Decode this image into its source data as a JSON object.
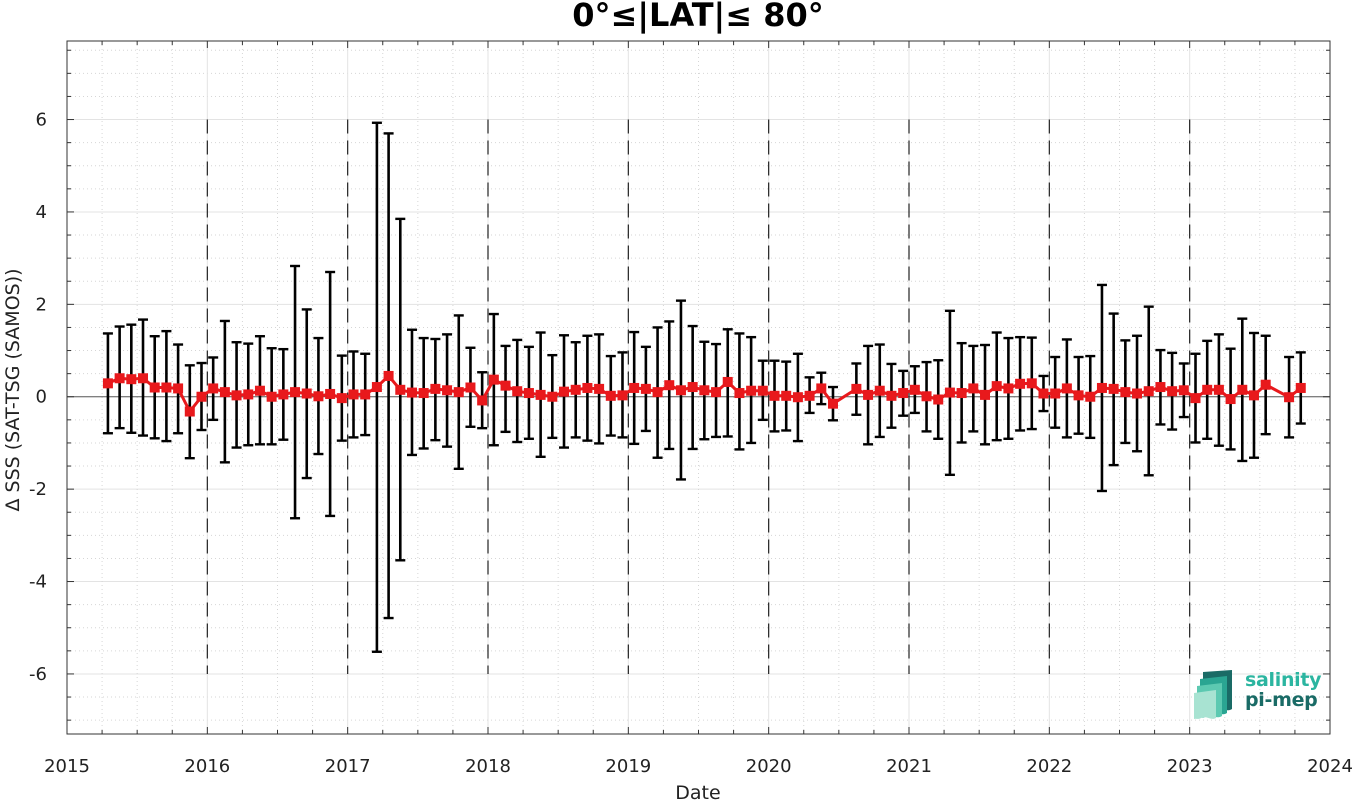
{
  "chart_data": {
    "type": "line",
    "title": "0°≤|LAT|≤ 80°",
    "xlabel": "Date",
    "ylabel": "Δ SSS (SAT-TSG (SAMOS))",
    "xlim": [
      "2015-01-01",
      "2024-01-01"
    ],
    "ylim": [
      -7.3,
      7.7
    ],
    "x_ticks": [
      "2015",
      "2016",
      "2017",
      "2018",
      "2019",
      "2020",
      "2021",
      "2022",
      "2023",
      "2024"
    ],
    "y_ticks": [
      "6",
      "4",
      "2",
      "0",
      "-2",
      "-4",
      "-6"
    ],
    "grid": true,
    "vertical_dashed_lines": [
      "2016-01-01",
      "2017-01-01",
      "2018-01-01",
      "2019-01-01",
      "2020-01-01",
      "2021-01-01",
      "2022-01-01",
      "2023-01-01"
    ],
    "series": [
      {
        "color": "#e8191c",
        "marker": "square",
        "error_bar_color": "#000000",
        "points": [
          {
            "x": "2015-04",
            "y": 0.29,
            "low": -0.79,
            "high": 1.37
          },
          {
            "x": "2015-05",
            "y": 0.4,
            "low": -0.68,
            "high": 1.52
          },
          {
            "x": "2015-06",
            "y": 0.38,
            "low": -0.78,
            "high": 1.56
          },
          {
            "x": "2015-07",
            "y": 0.4,
            "low": -0.84,
            "high": 1.67
          },
          {
            "x": "2015-08",
            "y": 0.2,
            "low": -0.9,
            "high": 1.31
          },
          {
            "x": "2015-09",
            "y": 0.2,
            "low": -0.96,
            "high": 1.42
          },
          {
            "x": "2015-10",
            "y": 0.18,
            "low": -0.79,
            "high": 1.13
          },
          {
            "x": "2015-11",
            "y": -0.32,
            "low": -1.33,
            "high": 0.68
          },
          {
            "x": "2015-12",
            "y": 0.0,
            "low": -0.72,
            "high": 0.73
          },
          {
            "x": "2016-01",
            "y": 0.18,
            "low": -0.5,
            "high": 0.85
          },
          {
            "x": "2016-02",
            "y": 0.1,
            "low": -1.42,
            "high": 1.64
          },
          {
            "x": "2016-03",
            "y": 0.03,
            "low": -1.1,
            "high": 1.18
          },
          {
            "x": "2016-04",
            "y": 0.05,
            "low": -1.05,
            "high": 1.15
          },
          {
            "x": "2016-05",
            "y": 0.13,
            "low": -1.03,
            "high": 1.31
          },
          {
            "x": "2016-06",
            "y": 0.0,
            "low": -1.03,
            "high": 1.05
          },
          {
            "x": "2016-07",
            "y": 0.05,
            "low": -0.93,
            "high": 1.03
          },
          {
            "x": "2016-08",
            "y": 0.1,
            "low": -2.63,
            "high": 2.83
          },
          {
            "x": "2016-09",
            "y": 0.07,
            "low": -1.76,
            "high": 1.89
          },
          {
            "x": "2016-10",
            "y": 0.01,
            "low": -1.24,
            "high": 1.27
          },
          {
            "x": "2016-11",
            "y": 0.06,
            "low": -2.58,
            "high": 2.7
          },
          {
            "x": "2016-12",
            "y": -0.03,
            "low": -0.95,
            "high": 0.89
          },
          {
            "x": "2017-01",
            "y": 0.05,
            "low": -0.88,
            "high": 0.98
          },
          {
            "x": "2017-02",
            "y": 0.05,
            "low": -0.83,
            "high": 0.93
          },
          {
            "x": "2017-03",
            "y": 0.21,
            "low": -5.52,
            "high": 5.93
          },
          {
            "x": "2017-04",
            "y": 0.45,
            "low": -4.79,
            "high": 5.7
          },
          {
            "x": "2017-05",
            "y": 0.15,
            "low": -3.54,
            "high": 3.85
          },
          {
            "x": "2017-06",
            "y": 0.09,
            "low": -1.26,
            "high": 1.45
          },
          {
            "x": "2017-07",
            "y": 0.08,
            "low": -1.12,
            "high": 1.27
          },
          {
            "x": "2017-08",
            "y": 0.17,
            "low": -0.94,
            "high": 1.25
          },
          {
            "x": "2017-09",
            "y": 0.14,
            "low": -1.08,
            "high": 1.35
          },
          {
            "x": "2017-10",
            "y": 0.1,
            "low": -1.56,
            "high": 1.76
          },
          {
            "x": "2017-11",
            "y": 0.2,
            "low": -0.65,
            "high": 1.06
          },
          {
            "x": "2017-12",
            "y": -0.08,
            "low": -0.68,
            "high": 0.53
          },
          {
            "x": "2018-01",
            "y": 0.37,
            "low": -1.05,
            "high": 1.79
          },
          {
            "x": "2018-02",
            "y": 0.24,
            "low": -0.76,
            "high": 1.1
          },
          {
            "x": "2018-03",
            "y": 0.12,
            "low": -0.98,
            "high": 1.23
          },
          {
            "x": "2018-04",
            "y": 0.08,
            "low": -0.91,
            "high": 1.08
          },
          {
            "x": "2018-05",
            "y": 0.04,
            "low": -1.3,
            "high": 1.39
          },
          {
            "x": "2018-06",
            "y": 0.0,
            "low": -0.89,
            "high": 0.9
          },
          {
            "x": "2018-07",
            "y": 0.11,
            "low": -1.1,
            "high": 1.33
          },
          {
            "x": "2018-08",
            "y": 0.15,
            "low": -0.88,
            "high": 1.18
          },
          {
            "x": "2018-09",
            "y": 0.19,
            "low": -0.95,
            "high": 1.32
          },
          {
            "x": "2018-10",
            "y": 0.17,
            "low": -1.01,
            "high": 1.35
          },
          {
            "x": "2018-11",
            "y": 0.02,
            "low": -0.84,
            "high": 0.88
          },
          {
            "x": "2018-12",
            "y": 0.03,
            "low": -0.88,
            "high": 0.96
          },
          {
            "x": "2019-01",
            "y": 0.19,
            "low": -1.02,
            "high": 1.4
          },
          {
            "x": "2019-02",
            "y": 0.17,
            "low": -0.74,
            "high": 1.08
          },
          {
            "x": "2019-03",
            "y": 0.1,
            "low": -1.32,
            "high": 1.5
          },
          {
            "x": "2019-04",
            "y": 0.25,
            "low": -1.13,
            "high": 1.63
          },
          {
            "x": "2019-05",
            "y": 0.14,
            "low": -1.79,
            "high": 2.08
          },
          {
            "x": "2019-06",
            "y": 0.21,
            "low": -1.13,
            "high": 1.53
          },
          {
            "x": "2019-07",
            "y": 0.14,
            "low": -0.92,
            "high": 1.19
          },
          {
            "x": "2019-08",
            "y": 0.1,
            "low": -0.87,
            "high": 1.14
          },
          {
            "x": "2019-09",
            "y": 0.32,
            "low": -0.86,
            "high": 1.46
          },
          {
            "x": "2019-10",
            "y": 0.08,
            "low": -1.14,
            "high": 1.37
          },
          {
            "x": "2019-11",
            "y": 0.13,
            "low": -1.0,
            "high": 1.29
          },
          {
            "x": "2019-12",
            "y": 0.13,
            "low": -0.5,
            "high": 0.78
          },
          {
            "x": "2020-01",
            "y": 0.02,
            "low": -0.75,
            "high": 0.78
          },
          {
            "x": "2020-02",
            "y": 0.02,
            "low": -0.73,
            "high": 0.76
          },
          {
            "x": "2020-03",
            "y": -0.01,
            "low": -0.96,
            "high": 0.93
          },
          {
            "x": "2020-04",
            "y": 0.02,
            "low": -0.35,
            "high": 0.42
          },
          {
            "x": "2020-05",
            "y": 0.18,
            "low": -0.16,
            "high": 0.52
          },
          {
            "x": "2020-06",
            "y": -0.15,
            "low": -0.51,
            "high": 0.21
          },
          {
            "x": "2020-08",
            "y": 0.17,
            "low": -0.39,
            "high": 0.72
          },
          {
            "x": "2020-09",
            "y": 0.04,
            "low": -1.03,
            "high": 1.1
          },
          {
            "x": "2020-10",
            "y": 0.13,
            "low": -0.87,
            "high": 1.13
          },
          {
            "x": "2020-11",
            "y": 0.02,
            "low": -0.67,
            "high": 0.71
          },
          {
            "x": "2020-12",
            "y": 0.08,
            "low": -0.41,
            "high": 0.56
          },
          {
            "x": "2021-01",
            "y": 0.15,
            "low": -0.35,
            "high": 0.66
          },
          {
            "x": "2021-02",
            "y": 0.01,
            "low": -0.75,
            "high": 0.75
          },
          {
            "x": "2021-03",
            "y": -0.06,
            "low": -0.91,
            "high": 0.79
          },
          {
            "x": "2021-04",
            "y": 0.09,
            "low": -1.69,
            "high": 1.86
          },
          {
            "x": "2021-05",
            "y": 0.08,
            "low": -0.99,
            "high": 1.16
          },
          {
            "x": "2021-06",
            "y": 0.18,
            "low": -0.75,
            "high": 1.1
          },
          {
            "x": "2021-07",
            "y": 0.04,
            "low": -1.03,
            "high": 1.12
          },
          {
            "x": "2021-08",
            "y": 0.23,
            "low": -0.94,
            "high": 1.39
          },
          {
            "x": "2021-09",
            "y": 0.18,
            "low": -0.91,
            "high": 1.27
          },
          {
            "x": "2021-10",
            "y": 0.28,
            "low": -0.73,
            "high": 1.29
          },
          {
            "x": "2021-11",
            "y": 0.29,
            "low": -0.7,
            "high": 1.28
          },
          {
            "x": "2021-12",
            "y": 0.07,
            "low": -0.31,
            "high": 0.45
          },
          {
            "x": "2022-01",
            "y": 0.07,
            "low": -0.67,
            "high": 0.86
          },
          {
            "x": "2022-02",
            "y": 0.18,
            "low": -0.88,
            "high": 1.24
          },
          {
            "x": "2022-03",
            "y": 0.03,
            "low": -0.8,
            "high": 0.86
          },
          {
            "x": "2022-04",
            "y": 0.0,
            "low": -0.89,
            "high": 0.88
          },
          {
            "x": "2022-05",
            "y": 0.19,
            "low": -2.04,
            "high": 2.42
          },
          {
            "x": "2022-06",
            "y": 0.17,
            "low": -1.48,
            "high": 1.8
          },
          {
            "x": "2022-07",
            "y": 0.1,
            "low": -1.0,
            "high": 1.22
          },
          {
            "x": "2022-08",
            "y": 0.07,
            "low": -1.18,
            "high": 1.32
          },
          {
            "x": "2022-09",
            "y": 0.12,
            "low": -1.7,
            "high": 1.95
          },
          {
            "x": "2022-10",
            "y": 0.21,
            "low": -0.6,
            "high": 1.01
          },
          {
            "x": "2022-11",
            "y": 0.12,
            "low": -0.71,
            "high": 0.95
          },
          {
            "x": "2022-12",
            "y": 0.14,
            "low": -0.44,
            "high": 0.72
          },
          {
            "x": "2023-01",
            "y": -0.03,
            "low": -0.99,
            "high": 0.93
          },
          {
            "x": "2023-02",
            "y": 0.15,
            "low": -0.91,
            "high": 1.21
          },
          {
            "x": "2023-03",
            "y": 0.15,
            "low": -1.06,
            "high": 1.35
          },
          {
            "x": "2023-04",
            "y": -0.05,
            "low": -1.14,
            "high": 1.04
          },
          {
            "x": "2023-05",
            "y": 0.15,
            "low": -1.39,
            "high": 1.69
          },
          {
            "x": "2023-06",
            "y": 0.03,
            "low": -1.32,
            "high": 1.38
          },
          {
            "x": "2023-07",
            "y": 0.26,
            "low": -0.81,
            "high": 1.32
          },
          {
            "x": "2023-09",
            "y": -0.01,
            "low": -0.88,
            "high": 0.86
          },
          {
            "x": "2023-10",
            "y": 0.19,
            "low": -0.58,
            "high": 0.96
          }
        ]
      }
    ]
  },
  "logo": {
    "line1": "salinity",
    "line2": "pi-mep",
    "colors": {
      "teal": "#2bb5a0",
      "dark": "#1a6b66"
    }
  }
}
